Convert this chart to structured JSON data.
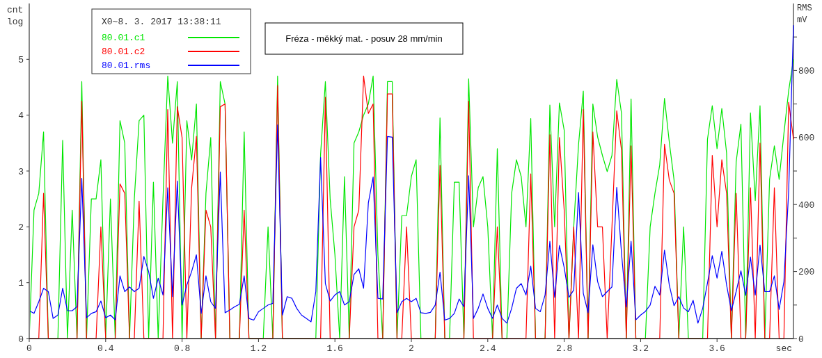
{
  "chart_data": {
    "type": "line",
    "title": "Fréza - měkký mat. - posuv 28 mm/min",
    "legend_title": "X0~8. 3. 2017 13:38:11",
    "xlabel": "sec",
    "ylabel": "cnt log",
    "y2label": "RMS mV",
    "legend": "top left",
    "grid": false,
    "marker": "none",
    "line_style": "solid",
    "x": [
      0,
      0.025,
      0.05,
      0.075,
      0.1,
      0.125,
      0.15,
      0.175,
      0.2,
      0.225,
      0.25,
      0.275,
      0.3,
      0.325,
      0.35,
      0.375,
      0.4,
      0.425,
      0.45,
      0.475,
      0.5,
      0.525,
      0.55,
      0.575,
      0.6,
      0.625,
      0.65,
      0.675,
      0.7,
      0.725,
      0.75,
      0.775,
      0.8,
      0.825,
      0.85,
      0.875,
      0.9,
      0.925,
      0.95,
      0.975,
      1,
      1.025,
      1.05,
      1.075,
      1.1,
      1.125,
      1.15,
      1.175,
      1.2,
      1.225,
      1.25,
      1.275,
      1.3,
      1.325,
      1.35,
      1.375,
      1.4,
      1.425,
      1.45,
      1.475,
      1.5,
      1.525,
      1.55,
      1.575,
      1.6,
      1.625,
      1.65,
      1.675,
      1.7,
      1.725,
      1.75,
      1.775,
      1.8,
      1.825,
      1.85,
      1.875,
      1.9,
      1.925,
      1.95,
      1.975,
      2,
      2.025,
      2.05,
      2.075,
      2.1,
      2.125,
      2.15,
      2.175,
      2.2,
      2.225,
      2.25,
      2.275,
      2.3,
      2.325,
      2.35,
      2.375,
      2.4,
      2.425,
      2.45,
      2.475,
      2.5,
      2.525,
      2.55,
      2.575,
      2.6,
      2.625,
      2.65,
      2.675,
      2.7,
      2.725,
      2.75,
      2.775,
      2.8,
      2.825,
      2.85,
      2.875,
      2.9,
      2.925,
      2.95,
      2.975,
      3,
      3.025,
      3.05,
      3.075,
      3.1,
      3.125,
      3.15,
      3.175,
      3.2,
      3.225,
      3.25,
      3.275,
      3.3,
      3.325,
      3.35,
      3.375,
      3.4,
      3.425,
      3.45,
      3.475,
      3.5,
      3.525,
      3.55,
      3.575,
      3.6,
      3.625,
      3.65,
      3.675,
      3.7,
      3.725,
      3.75,
      3.775,
      3.8,
      3.825,
      3.85,
      3.875,
      3.9,
      3.925,
      3.95,
      3.975,
      4
    ],
    "xlim": [
      0,
      4
    ],
    "xticks": [
      0,
      0.4,
      0.8,
      1.2,
      1.6,
      2,
      2.4,
      2.8,
      3.2,
      3.6
    ],
    "ylim": [
      0,
      6
    ],
    "yticks": [
      0,
      1,
      2,
      3,
      4,
      5
    ],
    "y2lim": [
      0,
      1000
    ],
    "y2ticks": [
      0,
      {
        "value": 100,
        "label": null
      },
      200,
      {
        "value": 300,
        "label": null
      },
      400,
      {
        "value": 500,
        "label": null
      },
      600,
      {
        "value": 700,
        "label": null
      },
      800,
      {
        "value": 900,
        "label": null
      }
    ],
    "series": [
      {
        "name": "80.01.c1",
        "color": "#00e600",
        "values": [
          0,
          2.3,
          2.6,
          3.7,
          0,
          0,
          0,
          3.55,
          0,
          2.3,
          0,
          4.6,
          0,
          2.5,
          2.5,
          3.2,
          0,
          2.5,
          0,
          3.9,
          3.5,
          0,
          2.5,
          3.9,
          4.0,
          0,
          2.8,
          0,
          2.5,
          4.7,
          3.5,
          4.6,
          0,
          3.9,
          3.2,
          4.2,
          0,
          2.6,
          3.6,
          0,
          4.6,
          4.2,
          0,
          0,
          0,
          3.7,
          0,
          0,
          0,
          0,
          2.0,
          0,
          4.7,
          0,
          0,
          0,
          0,
          0,
          0,
          0,
          0,
          3.3,
          4.6,
          2.5,
          1.5,
          0,
          2.9,
          0,
          3.5,
          3.7,
          4.0,
          4.2,
          4.7,
          1.5,
          0,
          4.6,
          4.6,
          0,
          2.2,
          2.2,
          2.9,
          3.2,
          0,
          0,
          0,
          0,
          3.95,
          0,
          0,
          2.8,
          2.8,
          0,
          4.65,
          2.0,
          2.7,
          2.9,
          2.0,
          0,
          3.4,
          0,
          0,
          2.6,
          3.2,
          2.9,
          2.0,
          3.94,
          0,
          0,
          0,
          4.18,
          2.0,
          4.22,
          3.73,
          0,
          2.0,
          3.47,
          4.43,
          0,
          4.2,
          3.61,
          3.28,
          2.99,
          3.28,
          4.64,
          4.03,
          0,
          4.29,
          0,
          0,
          0,
          2.0,
          2.6,
          3.11,
          4.3,
          3.52,
          2.84,
          0,
          2.0,
          0,
          0,
          0,
          0,
          3.57,
          4.17,
          3.4,
          4.12,
          3.32,
          0,
          3.16,
          3.84,
          0,
          4.04,
          2.47,
          4.17,
          0,
          2.85,
          3.45,
          2.85,
          3.67,
          4.44,
          5.0
        ]
      },
      {
        "name": "80.01.c2",
        "color": "#ff0000",
        "values": [
          0,
          0,
          0,
          2.6,
          0,
          0,
          0,
          0,
          0,
          0,
          0,
          4.25,
          0,
          0,
          0,
          2.0,
          0,
          0,
          0,
          2.77,
          2.6,
          0,
          0,
          2.46,
          0,
          0,
          0,
          0,
          0,
          4.1,
          0,
          4.15,
          3.6,
          0,
          2.7,
          3.62,
          0,
          2.3,
          2.0,
          0,
          4.15,
          4.2,
          0,
          0,
          0,
          2.3,
          0,
          0,
          0,
          0,
          0,
          0,
          4.53,
          0,
          0,
          0,
          0,
          0,
          0,
          0,
          0,
          0,
          4.32,
          0,
          0,
          0,
          0,
          0,
          2.0,
          2.3,
          4.7,
          4.03,
          4.2,
          0,
          0,
          4.38,
          4.38,
          0,
          0,
          2.0,
          0,
          0,
          0,
          0,
          0,
          0,
          3.1,
          0,
          0,
          0,
          0,
          0,
          4.25,
          0,
          0,
          0,
          0,
          0,
          2.0,
          0,
          0,
          0,
          0,
          0,
          0,
          2.95,
          0,
          0,
          0,
          3.65,
          0,
          3.6,
          2.3,
          0,
          2.0,
          0,
          4.1,
          0,
          3.7,
          2.0,
          2.0,
          0,
          2.0,
          4.08,
          3.37,
          0,
          3.45,
          0,
          0,
          0,
          0,
          0,
          0,
          3.48,
          2.84,
          2.6,
          0,
          0,
          0,
          0,
          0,
          0,
          0,
          3.28,
          2.0,
          3.2,
          2.6,
          0,
          2.6,
          0,
          0,
          2.7,
          0,
          3.5,
          0,
          0,
          2.7,
          0,
          0,
          4.23,
          3.57
        ]
      },
      {
        "name": "80.01.rms",
        "color": "#0000ff",
        "axis": "y2",
        "values": [
          83,
          75,
          110,
          150,
          140,
          60,
          70,
          150,
          83,
          83,
          95,
          478,
          62,
          75,
          80,
          112,
          62,
          70,
          56,
          187,
          140,
          154,
          140,
          150,
          245,
          200,
          120,
          180,
          130,
          450,
          125,
          470,
          100,
          160,
          200,
          250,
          75,
          187,
          110,
          90,
          497,
          77,
          85,
          95,
          102,
          187,
          60,
          55,
          80,
          90,
          100,
          105,
          638,
          70,
          125,
          120,
          90,
          70,
          60,
          50,
          140,
          540,
          164,
          112,
          130,
          140,
          100,
          110,
          191,
          208,
          150,
          405,
          482,
          120,
          118,
          603,
          601,
          77,
          110,
          120,
          110,
          120,
          77,
          75,
          78,
          100,
          198,
          55,
          60,
          75,
          118,
          95,
          486,
          60,
          90,
          133,
          90,
          60,
          100,
          60,
          46,
          90,
          150,
          164,
          130,
          216,
          90,
          80,
          130,
          290,
          123,
          278,
          212,
          123,
          145,
          436,
          135,
          77,
          280,
          170,
          125,
          140,
          154,
          451,
          254,
          94,
          290,
          56,
          70,
          81,
          100,
          156,
          130,
          264,
          160,
          98,
          125,
          91,
          80,
          114,
          46,
          90,
          166,
          247,
          180,
          260,
          160,
          83,
          140,
          202,
          129,
          243,
          130,
          279,
          140,
          140,
          187,
          87,
          170,
          441,
          935
        ]
      }
    ]
  }
}
